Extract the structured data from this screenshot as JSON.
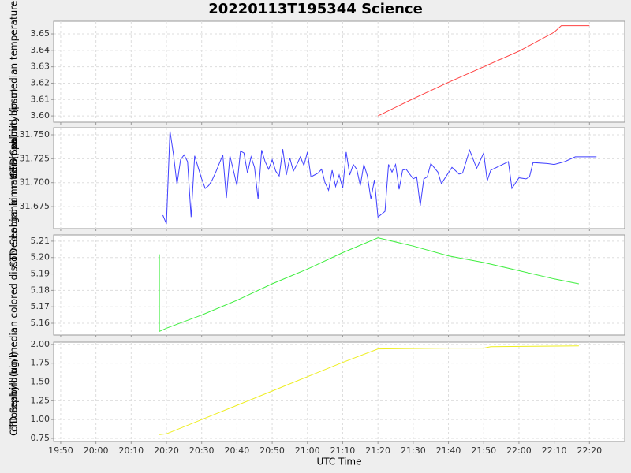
{
  "title": "20220113T195344 Science",
  "chart_data": [
    {
      "type": "line",
      "ylabel": "CTD Seabird bin median temperature (degC)",
      "color": "#ff4040",
      "xlim": [
        "19:48",
        "22:30"
      ],
      "ylim": [
        3.5962,
        3.6577
      ],
      "yticks": [
        {
          "value": 3.6,
          "label": "3.60"
        },
        3.61,
        3.62,
        3.63,
        3.64,
        3.65
      ],
      "grid": true,
      "x": [
        "21:20",
        "21:30",
        "21:40",
        "21:50",
        "22:00",
        "22:10",
        "22:12",
        "22:20"
      ],
      "values": [
        3.6,
        3.6105,
        3.6205,
        3.63,
        3.6395,
        3.651,
        3.655,
        3.655
      ]
    },
    {
      "type": "line",
      "ylabel": "CTD Seabird bin median salinity (psu)",
      "color": "#4040ff",
      "xlim": [
        "19:48",
        "22:30"
      ],
      "ylim": [
        31.652,
        31.7574
      ],
      "yticks": [
        31.675,
        {
          "value": 31.7,
          "label": "31.700"
        },
        31.725,
        {
          "value": 31.75,
          "label": "31.750"
        }
      ],
      "grid": true,
      "x": [
        "20:19",
        "20:20",
        "20:21",
        "20:22",
        "20:23",
        "20:24",
        "20:25",
        "20:26",
        "20:27",
        "20:28",
        "20:29",
        "20:30",
        "20:31",
        "20:32",
        "20:33",
        "20:34",
        "20:35",
        "20:36",
        "20:37",
        "20:38",
        "20:39",
        "20:40",
        "20:41",
        "20:42",
        "20:43",
        "20:44",
        "20:45",
        "20:46",
        "20:47",
        "20:48",
        "20:49",
        "20:50",
        "20:51",
        "20:52",
        "20:53",
        "20:54",
        "20:55",
        "20:56",
        "20:57",
        "20:58",
        "20:59",
        "21:00",
        "21:01",
        "21:02",
        "21:03",
        "21:04",
        "21:05",
        "21:06",
        "21:07",
        "21:08",
        "21:09",
        "21:10",
        "21:11",
        "21:12",
        "21:13",
        "21:14",
        "21:15",
        "21:16",
        "21:17",
        "21:18",
        "21:19",
        "21:20",
        "21:22",
        "21:23",
        "21:24",
        "21:25",
        "21:26",
        "21:27",
        "21:28",
        "21:30",
        "21:31",
        "21:32",
        "21:33",
        "21:34",
        "21:35",
        "21:37",
        "21:38",
        "21:41",
        "21:43",
        "21:44",
        "21:46",
        "21:48",
        "21:50",
        "21:51",
        "21:52",
        "21:57",
        "21:58",
        "22:00",
        "22:02",
        "22:03",
        "22:04",
        "22:08",
        "22:10",
        "22:13",
        "22:16",
        "22:22"
      ],
      "values": [
        31.666,
        31.657,
        31.754,
        31.729,
        31.698,
        31.724,
        31.729,
        31.722,
        31.664,
        31.728,
        31.716,
        31.704,
        31.694,
        31.697,
        31.703,
        31.711,
        31.72,
        31.729,
        31.684,
        31.728,
        31.713,
        31.697,
        31.733,
        31.731,
        31.71,
        31.727,
        31.716,
        31.683,
        31.734,
        31.722,
        31.714,
        31.724,
        31.712,
        31.707,
        31.735,
        31.708,
        31.726,
        31.712,
        31.719,
        31.727,
        31.718,
        31.732,
        31.706,
        31.708,
        31.71,
        31.714,
        31.7,
        31.692,
        31.713,
        31.696,
        31.708,
        31.694,
        31.732,
        31.708,
        31.719,
        31.714,
        31.697,
        31.719,
        31.707,
        31.683,
        31.703,
        31.664,
        31.67,
        31.719,
        31.711,
        31.719,
        31.693,
        31.713,
        31.714,
        31.704,
        31.706,
        31.676,
        31.704,
        31.706,
        31.72,
        31.711,
        31.699,
        31.716,
        31.709,
        31.71,
        31.734,
        31.715,
        31.731,
        31.702,
        31.713,
        31.722,
        31.694,
        31.705,
        31.704,
        31.706,
        31.721,
        31.72,
        31.719,
        31.722,
        31.727,
        31.727
      ]
    },
    {
      "type": "line",
      "ylabel": "CTD Seabird bin median colored dissolved organic matter (ppb)",
      "color": "#40ee40",
      "xlim": [
        "19:48",
        "22:30"
      ],
      "ylim": [
        5.1528,
        5.2138
      ],
      "yticks": [
        5.16,
        5.17,
        5.18,
        5.19,
        {
          "value": 5.2,
          "label": "5.20"
        },
        5.21
      ],
      "grid": true,
      "x": [
        "20:18",
        "20:18",
        "20:20",
        "20:30",
        "20:40",
        "20:50",
        "21:00",
        "21:10",
        "21:20",
        "21:30",
        "21:40",
        "21:50",
        "22:00",
        "22:10",
        "22:17"
      ],
      "values": [
        5.202,
        5.155,
        5.157,
        5.165,
        5.174,
        5.184,
        5.193,
        5.203,
        5.212,
        5.207,
        5.201,
        5.197,
        5.192,
        5.187,
        5.184
      ]
    },
    {
      "type": "line",
      "ylabel": "chlorophyll (ug/l)",
      "color": "#eeee20",
      "xlim": [
        "19:48",
        "22:30"
      ],
      "ylim": [
        0.708,
        2.03
      ],
      "yticks": [
        0.75,
        {
          "value": 1,
          "label": "1.00"
        },
        1.25,
        {
          "value": 1.5,
          "label": "1.50"
        },
        1.75,
        {
          "value": 2,
          "label": "2.00"
        }
      ],
      "grid": true,
      "xlabel": "UTC Time",
      "xticks": [
        "19:50",
        "20:00",
        "20:10",
        "20:20",
        "20:30",
        "20:40",
        "20:50",
        "21:00",
        "21:10",
        "21:20",
        "21:30",
        "21:40",
        "21:50",
        "22:00",
        "22:10",
        "22:20"
      ],
      "x": [
        "20:18",
        "20:20",
        "20:30",
        "20:40",
        "20:50",
        "21:00",
        "21:10",
        "21:20",
        "21:40",
        "21:50",
        "21:52",
        "22:17"
      ],
      "values": [
        0.8,
        0.81,
        1.0,
        1.19,
        1.38,
        1.57,
        1.76,
        1.94,
        1.95,
        1.95,
        1.97,
        1.98
      ]
    }
  ]
}
